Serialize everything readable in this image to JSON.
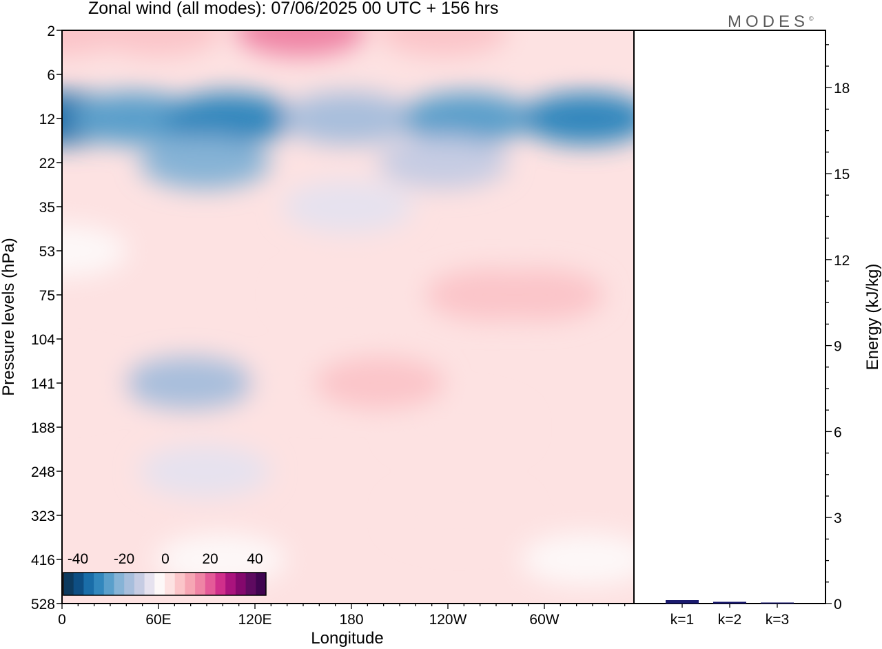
{
  "chart_data": [
    {
      "type": "heatmap",
      "title": "Zonal wind (all modes):  07/06/2025  00 UTC  + 156 hrs",
      "xlabel": "Longitude",
      "ylabel": "Pressure levels (hPa)",
      "x_ticks": [
        "0",
        "60E",
        "120E",
        "180",
        "120W",
        "60W"
      ],
      "y_ticks": [
        "2",
        "6",
        "12",
        "22",
        "35",
        "53",
        "75",
        "104",
        "141",
        "188",
        "248",
        "323",
        "416",
        "528"
      ],
      "colorbar": {
        "labels": [
          "-40",
          "-20",
          "0",
          "20",
          "40"
        ],
        "colors": [
          "#0d3a5e",
          "#0e4e83",
          "#1a6da8",
          "#3287bd",
          "#5a9fcb",
          "#86b3d6",
          "#a7bedc",
          "#c6cce3",
          "#e6e2ef",
          "#fdf8f8",
          "#fde2e2",
          "#fbc5c9",
          "#f6a6b4",
          "#ef84a5",
          "#e45a98",
          "#d02f8b",
          "#aa137d",
          "#84086d",
          "#5e0a60",
          "#400450"
        ]
      },
      "regions": [
        {
          "lon": 0,
          "plev": 2,
          "value": 5
        },
        {
          "lon": 60,
          "plev": 2,
          "value": 8
        },
        {
          "lon": 150,
          "plev": 2,
          "value": 18
        },
        {
          "lon": 240,
          "plev": 2,
          "value": 8
        },
        {
          "lon": 330,
          "plev": 2,
          "value": 3
        },
        {
          "lon": 0,
          "plev": 12,
          "value": -35
        },
        {
          "lon": 45,
          "plev": 12,
          "value": -25
        },
        {
          "lon": 105,
          "plev": 12,
          "value": -30
        },
        {
          "lon": 180,
          "plev": 12,
          "value": -18
        },
        {
          "lon": 255,
          "plev": 12,
          "value": -28
        },
        {
          "lon": 330,
          "plev": 12,
          "value": -32
        },
        {
          "lon": 90,
          "plev": 22,
          "value": -22
        },
        {
          "lon": 240,
          "plev": 22,
          "value": -12
        },
        {
          "lon": 180,
          "plev": 35,
          "value": -8
        },
        {
          "lon": 0,
          "plev": 53,
          "value": -2
        },
        {
          "lon": 180,
          "plev": 75,
          "value": 2
        },
        {
          "lon": 270,
          "plev": 75,
          "value": 5
        },
        {
          "lon": 300,
          "plev": 75,
          "value": 7
        },
        {
          "lon": 80,
          "plev": 141,
          "value": -18
        },
        {
          "lon": 160,
          "plev": 141,
          "value": 4
        },
        {
          "lon": 200,
          "plev": 141,
          "value": 6
        },
        {
          "lon": 250,
          "plev": 188,
          "value": 4
        },
        {
          "lon": 0,
          "plev": 141,
          "value": 4
        },
        {
          "lon": 90,
          "plev": 248,
          "value": -6
        },
        {
          "lon": 250,
          "plev": 323,
          "value": 3
        },
        {
          "lon": 100,
          "plev": 416,
          "value": -1
        },
        {
          "lon": 330,
          "plev": 416,
          "value": -2
        }
      ]
    },
    {
      "type": "bar",
      "ylabel": "Energy (kJ/kg)",
      "categories": [
        "k=1",
        "k=2",
        "k=3"
      ],
      "values": [
        0.1,
        0.05,
        0.03
      ],
      "ylim": [
        0,
        20
      ],
      "y_ticks": [
        "0",
        "3",
        "6",
        "9",
        "12",
        "15",
        "18"
      ],
      "bar_color": "#1a1a6e"
    }
  ],
  "brand": {
    "text": "MODES",
    "mark": "©"
  }
}
